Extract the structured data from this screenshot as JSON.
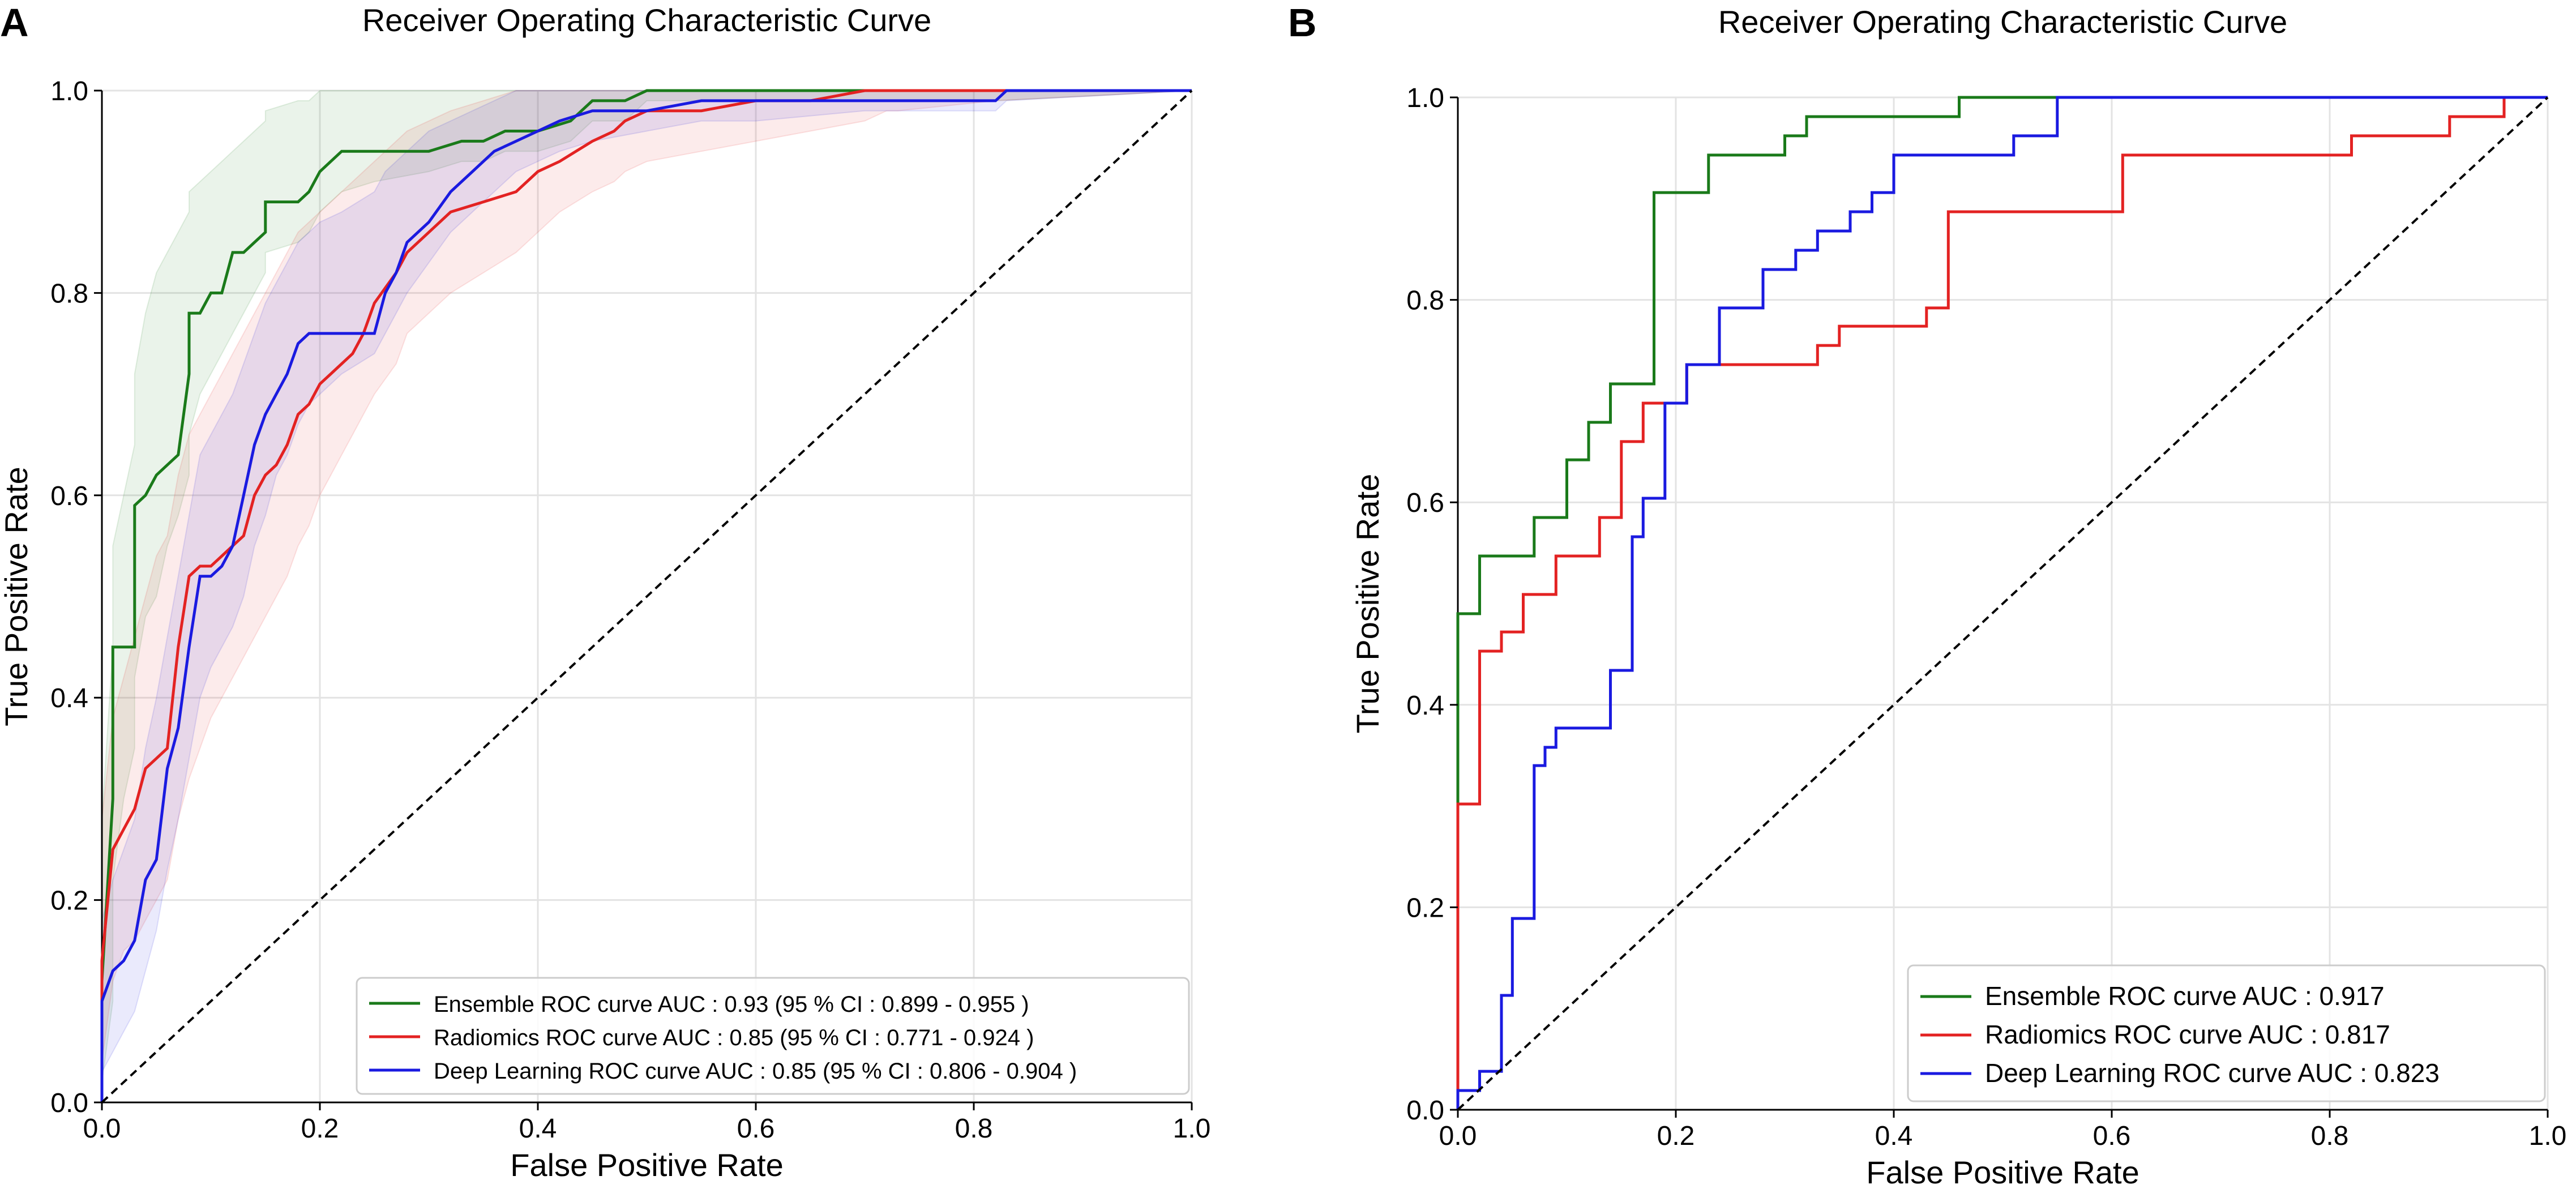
{
  "chart_data": [
    {
      "panel": "A",
      "type": "line",
      "title": "Receiver Operating Characteristic Curve",
      "xlabel": "False Positive Rate",
      "ylabel": "True Positive Rate",
      "xlim": [
        0,
        1
      ],
      "ylim": [
        0,
        1
      ],
      "xticks": [
        "0.0",
        "0.2",
        "0.4",
        "0.6",
        "0.8",
        "1.0"
      ],
      "yticks": [
        "0.0",
        "0.2",
        "0.4",
        "0.6",
        "0.8",
        "1.0"
      ],
      "grid": true,
      "legend_position": "bottom-right",
      "series": [
        {
          "name": "Ensemble ROC curve AUC : 0.93 (95 % CI : 0.899 - 0.955 )",
          "color": "#1a7a1a",
          "x": [
            0,
            0,
            0.01,
            0.01,
            0.02,
            0.03,
            0.03,
            0.04,
            0.05,
            0.06,
            0.07,
            0.08,
            0.08,
            0.09,
            0.1,
            0.11,
            0.12,
            0.13,
            0.14,
            0.15,
            0.15,
            0.18,
            0.19,
            0.2,
            0.22,
            0.25,
            0.3,
            0.33,
            0.35,
            0.37,
            0.4,
            0.43,
            0.45,
            0.48,
            0.5,
            0.55,
            0.6,
            0.7,
            0.72,
            0.73,
            0.82,
            1.0
          ],
          "y": [
            0,
            0.12,
            0.3,
            0.45,
            0.45,
            0.45,
            0.59,
            0.6,
            0.62,
            0.63,
            0.64,
            0.72,
            0.78,
            0.78,
            0.8,
            0.8,
            0.84,
            0.84,
            0.85,
            0.86,
            0.89,
            0.89,
            0.9,
            0.92,
            0.94,
            0.94,
            0.94,
            0.95,
            0.95,
            0.96,
            0.96,
            0.97,
            0.99,
            0.99,
            1.0,
            1.0,
            1.0,
            1.0,
            1.0,
            1.0,
            1.0,
            1.0
          ],
          "ci_lower": [
            0,
            0.02,
            0.1,
            0.22,
            0.3,
            0.35,
            0.42,
            0.48,
            0.5,
            0.55,
            0.58,
            0.62,
            0.66,
            0.7,
            0.72,
            0.74,
            0.76,
            0.78,
            0.8,
            0.82,
            0.84,
            0.85,
            0.86,
            0.88,
            0.9,
            0.91,
            0.92,
            0.93,
            0.93,
            0.94,
            0.94,
            0.95,
            0.97,
            0.97,
            0.99,
            0.99,
            0.99,
            0.99,
            0.99,
            0.99,
            0.99,
            1.0
          ],
          "ci_upper": [
            0.1,
            0.28,
            0.45,
            0.55,
            0.6,
            0.65,
            0.72,
            0.78,
            0.82,
            0.84,
            0.86,
            0.88,
            0.9,
            0.91,
            0.92,
            0.93,
            0.94,
            0.95,
            0.96,
            0.97,
            0.98,
            0.99,
            0.99,
            1.0,
            1.0,
            1.0,
            1.0,
            1.0,
            1.0,
            1.0,
            1.0,
            1.0,
            1.0,
            1.0,
            1.0,
            1.0,
            1.0,
            1.0,
            1.0,
            1.0,
            1.0,
            1.0
          ]
        },
        {
          "name": "Radiomics ROC curve AUC : 0.85 (95 % CI : 0.771 - 0.924 )",
          "color": "#e32222",
          "x": [
            0,
            0,
            0.01,
            0.02,
            0.03,
            0.04,
            0.05,
            0.06,
            0.07,
            0.08,
            0.09,
            0.1,
            0.11,
            0.12,
            0.13,
            0.14,
            0.15,
            0.16,
            0.17,
            0.18,
            0.19,
            0.2,
            0.21,
            0.22,
            0.23,
            0.24,
            0.25,
            0.27,
            0.28,
            0.3,
            0.32,
            0.35,
            0.38,
            0.4,
            0.42,
            0.45,
            0.47,
            0.48,
            0.5,
            0.55,
            0.6,
            0.65,
            0.7,
            0.72,
            0.73,
            0.82,
            1.0
          ],
          "y": [
            0,
            0.14,
            0.25,
            0.27,
            0.29,
            0.33,
            0.34,
            0.35,
            0.45,
            0.52,
            0.53,
            0.53,
            0.54,
            0.55,
            0.56,
            0.6,
            0.62,
            0.63,
            0.65,
            0.68,
            0.69,
            0.71,
            0.72,
            0.73,
            0.74,
            0.76,
            0.79,
            0.82,
            0.84,
            0.86,
            0.88,
            0.89,
            0.9,
            0.92,
            0.93,
            0.95,
            0.96,
            0.97,
            0.98,
            0.98,
            0.99,
            0.99,
            1.0,
            1.0,
            1.0,
            1.0,
            1.0
          ],
          "ci_lower": [
            0,
            0.04,
            0.12,
            0.15,
            0.16,
            0.18,
            0.2,
            0.22,
            0.28,
            0.32,
            0.35,
            0.38,
            0.4,
            0.42,
            0.44,
            0.46,
            0.48,
            0.5,
            0.52,
            0.55,
            0.57,
            0.6,
            0.62,
            0.64,
            0.66,
            0.68,
            0.7,
            0.73,
            0.76,
            0.78,
            0.8,
            0.82,
            0.84,
            0.86,
            0.88,
            0.9,
            0.91,
            0.92,
            0.93,
            0.94,
            0.95,
            0.96,
            0.97,
            0.98,
            0.98,
            0.99,
            1.0
          ],
          "ci_upper": [
            0.1,
            0.28,
            0.38,
            0.42,
            0.46,
            0.5,
            0.54,
            0.56,
            0.62,
            0.66,
            0.68,
            0.7,
            0.72,
            0.74,
            0.76,
            0.78,
            0.8,
            0.82,
            0.84,
            0.86,
            0.87,
            0.88,
            0.89,
            0.9,
            0.91,
            0.92,
            0.93,
            0.95,
            0.96,
            0.97,
            0.98,
            0.99,
            1.0,
            1.0,
            1.0,
            1.0,
            1.0,
            1.0,
            1.0,
            1.0,
            1.0,
            1.0,
            1.0,
            1.0,
            1.0,
            1.0,
            1.0
          ]
        },
        {
          "name": "Deep Learning ROC curve AUC : 0.85 (95 % CI : 0.806 - 0.904 )",
          "color": "#1a1ae0",
          "x": [
            0,
            0,
            0.01,
            0.02,
            0.03,
            0.04,
            0.05,
            0.06,
            0.07,
            0.08,
            0.09,
            0.1,
            0.11,
            0.12,
            0.13,
            0.14,
            0.15,
            0.16,
            0.17,
            0.18,
            0.19,
            0.2,
            0.22,
            0.25,
            0.26,
            0.27,
            0.28,
            0.3,
            0.32,
            0.34,
            0.36,
            0.38,
            0.4,
            0.42,
            0.45,
            0.5,
            0.55,
            0.6,
            0.7,
            0.82,
            0.83,
            1.0
          ],
          "y": [
            0,
            0.1,
            0.13,
            0.14,
            0.16,
            0.22,
            0.24,
            0.33,
            0.37,
            0.45,
            0.52,
            0.52,
            0.53,
            0.55,
            0.6,
            0.65,
            0.68,
            0.7,
            0.72,
            0.75,
            0.76,
            0.76,
            0.76,
            0.76,
            0.8,
            0.82,
            0.85,
            0.87,
            0.9,
            0.92,
            0.94,
            0.95,
            0.96,
            0.97,
            0.98,
            0.98,
            0.99,
            0.99,
            0.99,
            0.99,
            1.0,
            1.0
          ],
          "ci_lower": [
            0,
            0.03,
            0.05,
            0.07,
            0.09,
            0.13,
            0.17,
            0.23,
            0.28,
            0.34,
            0.4,
            0.43,
            0.45,
            0.47,
            0.5,
            0.55,
            0.58,
            0.62,
            0.64,
            0.67,
            0.69,
            0.7,
            0.72,
            0.74,
            0.76,
            0.78,
            0.8,
            0.83,
            0.86,
            0.88,
            0.9,
            0.92,
            0.93,
            0.94,
            0.95,
            0.96,
            0.97,
            0.97,
            0.98,
            0.98,
            0.99,
            1.0
          ],
          "ci_upper": [
            0.07,
            0.18,
            0.22,
            0.25,
            0.28,
            0.35,
            0.4,
            0.46,
            0.52,
            0.58,
            0.64,
            0.66,
            0.68,
            0.7,
            0.73,
            0.76,
            0.79,
            0.81,
            0.83,
            0.85,
            0.86,
            0.87,
            0.88,
            0.9,
            0.92,
            0.93,
            0.94,
            0.96,
            0.97,
            0.98,
            0.99,
            1.0,
            1.0,
            1.0,
            1.0,
            1.0,
            1.0,
            1.0,
            1.0,
            1.0,
            1.0,
            1.0
          ]
        },
        {
          "name": "Chance",
          "color": "#000000",
          "dashed": true,
          "x": [
            0,
            1
          ],
          "y": [
            0,
            1
          ]
        }
      ]
    },
    {
      "panel": "B",
      "type": "line",
      "title": "Receiver Operating Characteristic Curve",
      "xlabel": "False Positive Rate",
      "ylabel": "True Positive Rate",
      "xlim": [
        0,
        1
      ],
      "ylim": [
        0,
        1
      ],
      "xticks": [
        "0.0",
        "0.2",
        "0.4",
        "0.6",
        "0.8",
        "1.0"
      ],
      "yticks": [
        "0.0",
        "0.2",
        "0.4",
        "0.6",
        "0.8",
        "1.0"
      ],
      "grid": true,
      "legend_position": "bottom-right",
      "series": [
        {
          "name": "Ensemble ROC curve AUC : 0.917",
          "color": "#1a7a1a",
          "x": [
            0,
            0,
            0.02,
            0.02,
            0.07,
            0.07,
            0.1,
            0.1,
            0.12,
            0.12,
            0.14,
            0.14,
            0.18,
            0.18,
            0.23,
            0.23,
            0.3,
            0.3,
            0.32,
            0.32,
            0.46,
            0.46,
            0.55,
            0.55,
            1.0
          ],
          "y": [
            0,
            0.49,
            0.49,
            0.547,
            0.547,
            0.585,
            0.585,
            0.642,
            0.642,
            0.679,
            0.679,
            0.717,
            0.717,
            0.906,
            0.906,
            0.943,
            0.943,
            0.962,
            0.962,
            0.981,
            0.981,
            1.0,
            1.0,
            1.0,
            1.0
          ]
        },
        {
          "name": "Radiomics ROC curve AUC : 0.817",
          "color": "#e32222",
          "x": [
            0,
            0,
            0.02,
            0.02,
            0.04,
            0.04,
            0.06,
            0.06,
            0.09,
            0.09,
            0.13,
            0.13,
            0.15,
            0.15,
            0.17,
            0.17,
            0.21,
            0.21,
            0.33,
            0.33,
            0.35,
            0.35,
            0.43,
            0.43,
            0.45,
            0.45,
            0.61,
            0.61,
            0.82,
            0.82,
            0.91,
            0.91,
            0.96,
            0.96,
            1.0
          ],
          "y": [
            0,
            0.302,
            0.302,
            0.453,
            0.453,
            0.472,
            0.472,
            0.509,
            0.509,
            0.547,
            0.547,
            0.585,
            0.585,
            0.66,
            0.66,
            0.698,
            0.698,
            0.736,
            0.736,
            0.755,
            0.755,
            0.774,
            0.774,
            0.792,
            0.792,
            0.887,
            0.887,
            0.943,
            0.943,
            0.962,
            0.962,
            0.981,
            0.981,
            1.0,
            1.0
          ]
        },
        {
          "name": "Deep Learning ROC curve AUC : 0.823",
          "color": "#1a1ae0",
          "x": [
            0,
            0,
            0.02,
            0.02,
            0.04,
            0.04,
            0.05,
            0.05,
            0.07,
            0.07,
            0.08,
            0.08,
            0.09,
            0.09,
            0.11,
            0.11,
            0.14,
            0.14,
            0.16,
            0.16,
            0.17,
            0.17,
            0.19,
            0.19,
            0.21,
            0.21,
            0.24,
            0.24,
            0.28,
            0.28,
            0.31,
            0.31,
            0.33,
            0.33,
            0.36,
            0.36,
            0.38,
            0.38,
            0.4,
            0.4,
            0.51,
            0.51,
            0.55,
            0.55,
            1.0
          ],
          "y": [
            0,
            0.019,
            0.019,
            0.038,
            0.038,
            0.113,
            0.113,
            0.189,
            0.189,
            0.34,
            0.34,
            0.358,
            0.358,
            0.377,
            0.377,
            0.377,
            0.377,
            0.434,
            0.434,
            0.566,
            0.566,
            0.604,
            0.604,
            0.698,
            0.698,
            0.736,
            0.736,
            0.792,
            0.792,
            0.83,
            0.83,
            0.849,
            0.849,
            0.868,
            0.868,
            0.887,
            0.887,
            0.906,
            0.906,
            0.943,
            0.943,
            0.962,
            0.962,
            1.0,
            1.0
          ]
        },
        {
          "name": "Chance",
          "color": "#000000",
          "dashed": true,
          "x": [
            0,
            1
          ],
          "y": [
            0,
            1
          ]
        }
      ]
    }
  ],
  "panels": [
    {
      "letter": "A"
    },
    {
      "letter": "B"
    }
  ]
}
